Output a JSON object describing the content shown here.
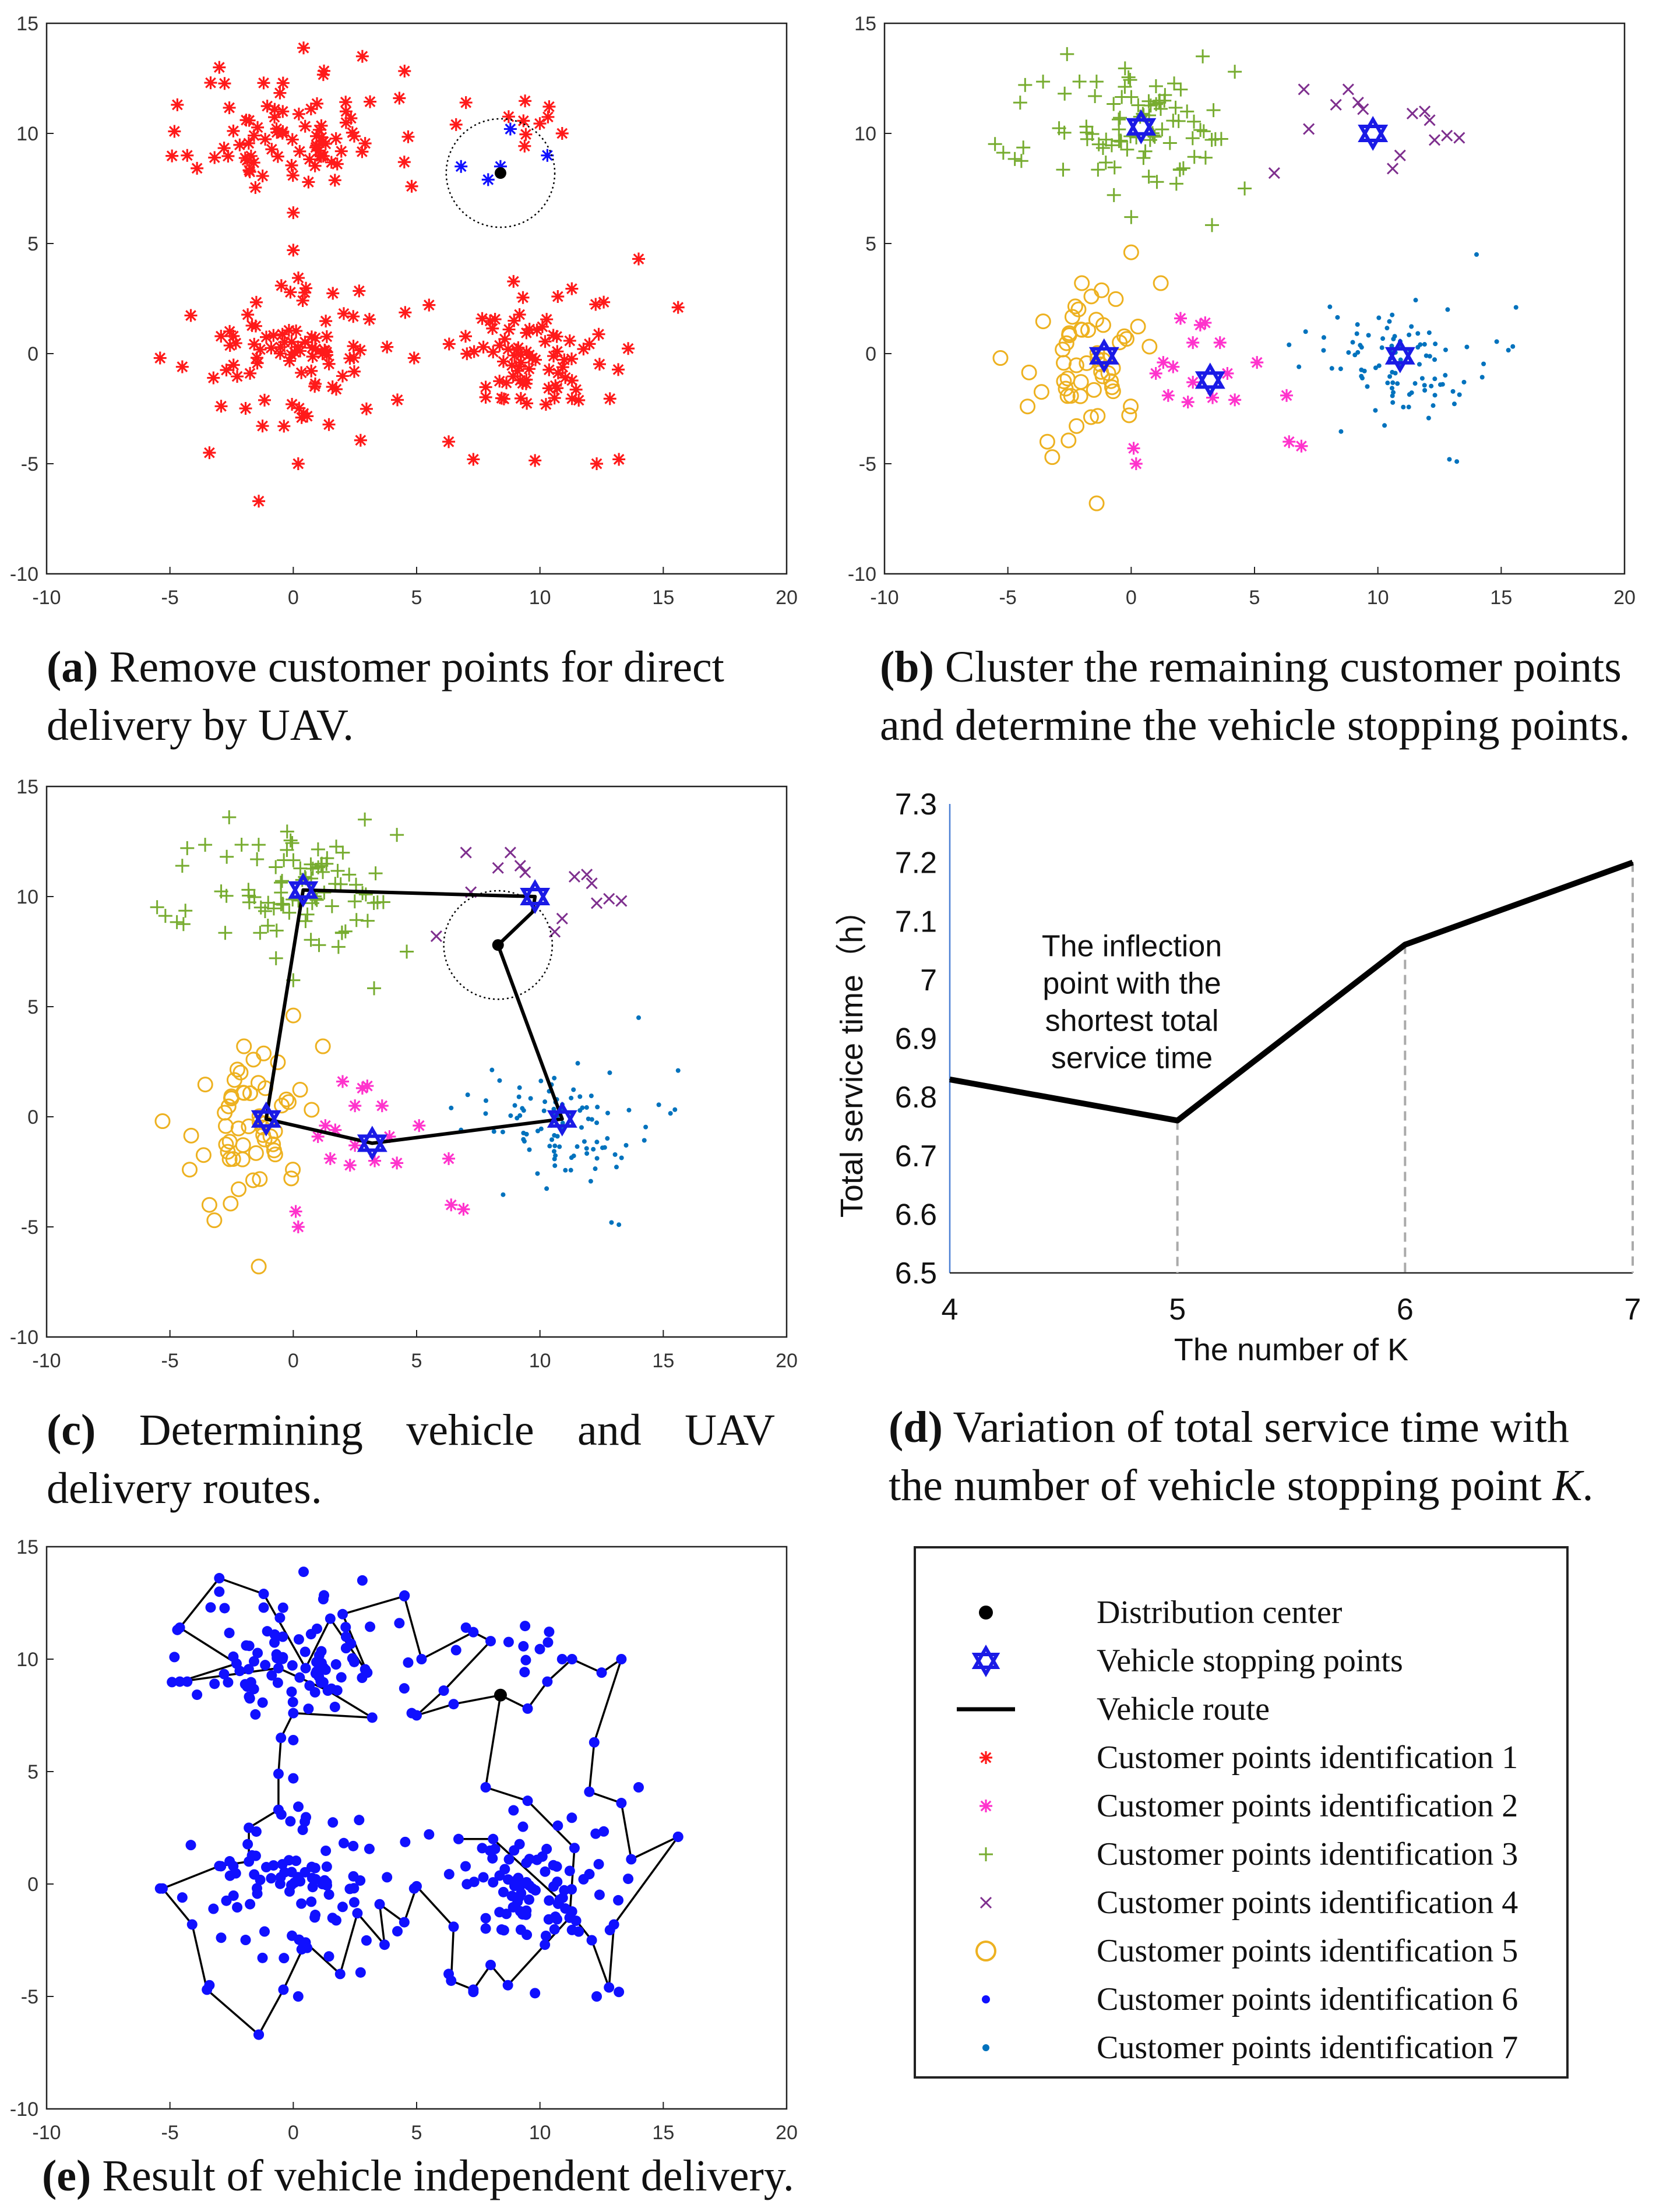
{
  "colors": {
    "red": "#ff1a1a",
    "magenta": "#ff33cc",
    "green": "#77ac30",
    "purple": "#7e2f8e",
    "orange": "#edb120",
    "blue_dot": "#1010ff",
    "cyan": "#0072bd",
    "star": "#1a1ae6",
    "black": "#000000"
  },
  "captions": {
    "a": {
      "label": "(a)",
      "l1": "Remove customer points for direct",
      "l2": "delivery by UAV."
    },
    "b": {
      "label": "(b)",
      "l1": "Cluster the remaining customer points",
      "l2": "and determine the vehicle stopping points."
    },
    "c": {
      "label": "(c)",
      "w1": "Determining",
      "w2": "vehicle",
      "w3": "and",
      "w4": "UAV",
      "l2": "delivery routes."
    },
    "d": {
      "label": "(d)",
      "l1": "Variation of total service time with",
      "l2": "the number of vehicle stopping point ",
      "l2_italic": "K",
      "l2_end": "."
    },
    "e": {
      "label": "(e)",
      "l1": "Result of vehicle independent delivery."
    }
  },
  "legend": {
    "items": [
      {
        "symbol": "dot-black",
        "label": "Distribution center"
      },
      {
        "symbol": "star-hexagram",
        "label": "Vehicle stopping points"
      },
      {
        "symbol": "line-black",
        "label": "Vehicle route"
      },
      {
        "symbol": "asterisk-red",
        "label": "Customer points identification 1"
      },
      {
        "symbol": "asterisk-magenta",
        "label": "Customer points identification 2"
      },
      {
        "symbol": "plus-green",
        "label": "Customer points identification 3"
      },
      {
        "symbol": "cross-purple",
        "label": "Customer points identification 4"
      },
      {
        "symbol": "circle-orange",
        "label": "Customer points identification 5"
      },
      {
        "symbol": "dot-blue",
        "label": "Customer points identification 6"
      },
      {
        "symbol": "dot-cyan",
        "label": "Customer points identification 7"
      }
    ]
  },
  "chart_data": [
    {
      "id": "a",
      "type": "scatter",
      "xlim": [
        -10,
        20
      ],
      "ylim": [
        -10,
        15
      ],
      "xticks": [
        -10,
        -5,
        0,
        5,
        10,
        15,
        20
      ],
      "yticks": [
        -10,
        -5,
        0,
        5,
        10,
        15
      ],
      "distribution_center": [
        8.4,
        8.2
      ],
      "uav_radius": 2.2,
      "series": [
        {
          "name": "Customer points identification 1",
          "marker": "asterisk",
          "color": "#ff1a1a",
          "clusters": [
            {
              "center": [
                0,
                10
              ],
              "n": 80,
              "spread": [
                2.6,
                1.9
              ],
              "seed": 11,
              "extra": [
                [
                  -4.7,
                  11.3
                ],
                [
                  -3.0,
                  13.0
                ],
                [
                  2.8,
                  13.5
                ],
                [
                  4.3,
                  11.6
                ],
                [
                  4.5,
                  8.7
                ],
                [
                  0.0,
                  6.4
                ],
                [
                  -4.3,
                  9.0
                ],
                [
                  4.8,
                  7.6
                ]
              ]
            },
            {
              "center": [
                10.5,
                10
              ],
              "n": 8,
              "spread": [
                1.3,
                1.0
              ],
              "seed": 12,
              "extra": [
                [
                  6.6,
                  10.4
                ],
                [
                  7.0,
                  11.4
                ],
                [
                  10.9,
                  10.0
                ]
              ]
            },
            {
              "center": [
                0,
                0
              ],
              "n": 85,
              "spread": [
                2.4,
                2.2
              ],
              "seed": 13,
              "extra": [
                [
                  -5.4,
                  -0.2
                ],
                [
                  -4.5,
                  -0.6
                ],
                [
                  -3.4,
                  -4.5
                ],
                [
                  -1.4,
                  -6.7
                ],
                [
                  0,
                  4.7
                ],
                [
                  3.8,
                  0.3
                ],
                [
                  4.9,
                  -0.2
                ],
                [
                  0.2,
                  -5.0
                ]
              ]
            },
            {
              "center": [
                10,
                0
              ],
              "n": 85,
              "spread": [
                2.5,
                2.0
              ],
              "seed": 14,
              "extra": [
                [
                  15.6,
                  2.1
                ],
                [
                  13.2,
                  -4.8
                ],
                [
                  6.3,
                  -4.0
                ],
                [
                  7.3,
                  -4.8
                ],
                [
                  14.0,
                  4.3
                ],
                [
                  12.3,
                  -5.0
                ]
              ]
            }
          ]
        },
        {
          "name": "UAV direct customers",
          "marker": "asterisk",
          "color": "#1010ff",
          "points": [
            [
              6.8,
              8.5
            ],
            [
              7.9,
              7.9
            ],
            [
              8.4,
              8.5
            ],
            [
              8.8,
              10.2
            ],
            [
              10.3,
              9.0
            ]
          ]
        }
      ]
    },
    {
      "id": "b",
      "type": "scatter",
      "xlim": [
        -10,
        20
      ],
      "ylim": [
        -10,
        15
      ],
      "xticks": [
        -10,
        -5,
        0,
        5,
        10,
        15,
        20
      ],
      "yticks": [
        -10,
        -5,
        0,
        5,
        10,
        15
      ],
      "stopping_points": [
        [
          0.4,
          10.3
        ],
        [
          9.8,
          10.0
        ],
        [
          -1.1,
          -0.1
        ],
        [
          3.2,
          -1.2
        ],
        [
          10.9,
          -0.1
        ]
      ],
      "series": [
        {
          "name": "Customer points identification 3",
          "marker": "plus",
          "color": "#77ac30",
          "cluster": {
            "center": [
              0.5,
              10
            ],
            "n": 85,
            "spread": [
              2.6,
              1.8
            ],
            "seed": 21,
            "extra": [
              [
                -4.3,
                12.2
              ],
              [
                -4.5,
                11.4
              ],
              [
                -2.6,
                13.6
              ],
              [
                2.9,
                13.5
              ],
              [
                4.2,
                12.8
              ],
              [
                4.6,
                7.5
              ],
              [
                0.0,
                6.2
              ],
              [
                -0.7,
                7.2
              ]
            ]
          }
        },
        {
          "name": "Customer points identification 4",
          "marker": "cross",
          "color": "#7e2f8e",
          "points": [
            [
              5.8,
              8.2
            ],
            [
              7.0,
              12.0
            ],
            [
              7.2,
              10.2
            ],
            [
              8.3,
              11.3
            ],
            [
              8.8,
              12.0
            ],
            [
              9.4,
              11.1
            ],
            [
              10.6,
              8.4
            ],
            [
              10.9,
              9.0
            ],
            [
              11.4,
              10.9
            ],
            [
              12.1,
              10.6
            ],
            [
              12.3,
              9.7
            ],
            [
              12.8,
              9.9
            ],
            [
              13.3,
              9.8
            ],
            [
              11.9,
              11.0
            ],
            [
              9.2,
              11.4
            ]
          ]
        },
        {
          "name": "Customer points identification 5",
          "marker": "circle",
          "color": "#edb120",
          "cluster": {
            "center": [
              -1.5,
              -0.5
            ],
            "n": 52,
            "spread": [
              1.3,
              1.8
            ],
            "seed": 23,
            "extra": [
              [
                -5.3,
                -0.2
              ],
              [
                -4.2,
                -2.4
              ],
              [
                -3.2,
                -4.7
              ],
              [
                -1.4,
                -6.8
              ],
              [
                0.0,
                4.6
              ],
              [
                -2.0,
                3.2
              ],
              [
                1.2,
                3.2
              ],
              [
                -3.4,
                -4.0
              ]
            ]
          }
        },
        {
          "name": "Customer points identification 2",
          "marker": "asterisk",
          "color": "#ff33cc",
          "points": [
            [
              0.1,
              -4.3
            ],
            [
              0.2,
              -5.0
            ],
            [
              1.0,
              -0.9
            ],
            [
              1.3,
              -0.4
            ],
            [
              1.5,
              -1.9
            ],
            [
              2.0,
              1.6
            ],
            [
              2.5,
              0.5
            ],
            [
              2.5,
              -1.3
            ],
            [
              2.8,
              1.3
            ],
            [
              3.0,
              1.4
            ],
            [
              3.3,
              -2.0
            ],
            [
              3.6,
              0.5
            ],
            [
              3.9,
              -0.9
            ],
            [
              4.2,
              -2.1
            ],
            [
              5.1,
              -0.4
            ],
            [
              6.3,
              -1.9
            ],
            [
              6.4,
              -4.0
            ],
            [
              6.9,
              -4.2
            ],
            [
              2.3,
              -2.2
            ],
            [
              1.7,
              -0.6
            ]
          ]
        },
        {
          "name": "Customer points identification 7",
          "marker": "dot",
          "color": "#0072bd",
          "cluster": {
            "center": [
              10.8,
              -0.3
            ],
            "n": 95,
            "spread": [
              2.3,
              1.8
            ],
            "seed": 27,
            "extra": [
              [
                15.6,
                2.1
              ],
              [
                14.0,
                4.5
              ],
              [
                13.2,
                -4.9
              ],
              [
                12.9,
                -4.8
              ],
              [
                6.4,
                0.4
              ],
              [
                6.8,
                -0.6
              ]
            ]
          }
        }
      ]
    },
    {
      "id": "c",
      "type": "scatter",
      "xlim": [
        -10,
        20
      ],
      "ylim": [
        -10,
        15
      ],
      "xticks": [
        -10,
        -5,
        0,
        5,
        10,
        15,
        20
      ],
      "yticks": [
        -10,
        -5,
        0,
        5,
        10,
        15
      ],
      "distribution_center": [
        8.3,
        7.8
      ],
      "uav_radius": 2.2,
      "stopping_points": [
        [
          0.4,
          10.3
        ],
        [
          9.8,
          10.0
        ],
        [
          -1.1,
          -0.1
        ],
        [
          3.2,
          -1.2
        ],
        [
          10.9,
          -0.1
        ]
      ],
      "vehicle_route": [
        [
          8.3,
          7.8
        ],
        [
          9.7,
          9.3
        ],
        [
          9.8,
          10.0
        ],
        [
          0.4,
          10.3
        ],
        [
          -1.1,
          -0.1
        ],
        [
          3.2,
          -1.2
        ],
        [
          10.9,
          -0.1
        ],
        [
          8.3,
          7.8
        ]
      ],
      "series_from": "b"
    },
    {
      "id": "d",
      "type": "line",
      "xlabel": "The number of K",
      "ylabel": "Total service time（h）",
      "xlim": [
        4,
        7
      ],
      "ylim": [
        6.5,
        7.3
      ],
      "x": [
        4,
        5,
        6,
        7
      ],
      "y": [
        6.83,
        6.76,
        7.06,
        7.2
      ],
      "xticks": [
        4,
        5,
        6,
        7
      ],
      "yticks": [
        6.5,
        6.6,
        6.7,
        6.8,
        6.9,
        7,
        7.1,
        7.2,
        7.3
      ],
      "ytick_labels": [
        "6.5",
        "6.6",
        "6.7",
        "6.8",
        "6.9",
        "7",
        "7.1",
        "7.2",
        "7.3"
      ],
      "annotation": [
        "The inflection",
        "point with the",
        "shortest total",
        "service time"
      ]
    },
    {
      "id": "e",
      "type": "line",
      "xlim": [
        -10,
        20
      ],
      "ylim": [
        -10,
        15
      ],
      "xticks": [
        -10,
        -5,
        0,
        5,
        10,
        15,
        20
      ],
      "yticks": [
        -10,
        -5,
        0,
        5,
        10,
        15
      ],
      "distribution_center": [
        8.4,
        8.4
      ],
      "route": [
        [
          8.4,
          8.4
        ],
        [
          6.5,
          8.0
        ],
        [
          5.0,
          7.5
        ],
        [
          6.1,
          8.6
        ],
        [
          8.0,
          10.8
        ],
        [
          7.3,
          11.2
        ],
        [
          5.2,
          10.0
        ],
        [
          4.5,
          12.8
        ],
        [
          2.0,
          12.0
        ],
        [
          3.0,
          9.4
        ],
        [
          1.5,
          11.8
        ],
        [
          0.5,
          9.6
        ],
        [
          -1.2,
          12.9
        ],
        [
          -3.0,
          13.6
        ],
        [
          -4.6,
          11.4
        ],
        [
          -2.3,
          9.8
        ],
        [
          -4.6,
          9.0
        ],
        [
          -0.6,
          9.6
        ],
        [
          1.4,
          8.6
        ],
        [
          3.2,
          7.4
        ],
        [
          0.0,
          7.6
        ],
        [
          -0.5,
          6.5
        ],
        [
          -0.6,
          4.9
        ],
        [
          -0.6,
          3.3
        ],
        [
          -1.8,
          2.5
        ],
        [
          -1.8,
          1.0
        ],
        [
          -3.0,
          0.8
        ],
        [
          -5.3,
          -0.2
        ],
        [
          -4.1,
          -1.8
        ],
        [
          -3.5,
          -4.7
        ],
        [
          -1.4,
          -6.7
        ],
        [
          -0.4,
          -4.7
        ],
        [
          0.5,
          -2.6
        ],
        [
          1.9,
          -4.0
        ],
        [
          2.6,
          -1.3
        ],
        [
          3.7,
          -2.7
        ],
        [
          3.5,
          -0.9
        ],
        [
          4.5,
          -1.7
        ],
        [
          5.0,
          -0.1
        ],
        [
          6.5,
          -1.9
        ],
        [
          6.4,
          -4.3
        ],
        [
          7.3,
          -4.7
        ],
        [
          8.0,
          -3.6
        ],
        [
          8.7,
          -4.5
        ],
        [
          10.2,
          -2.7
        ],
        [
          11.2,
          -1.5
        ],
        [
          11.4,
          1.6
        ],
        [
          9.5,
          3.7
        ],
        [
          7.8,
          4.3
        ],
        [
          8.4,
          8.4
        ],
        [
          9.5,
          7.8
        ],
        [
          10.3,
          9.0
        ],
        [
          11.3,
          10.0
        ],
        [
          12.5,
          9.4
        ],
        [
          13.3,
          10.0
        ],
        [
          12.2,
          6.3
        ],
        [
          12.0,
          4.1
        ],
        [
          13.3,
          3.6
        ],
        [
          13.7,
          1.1
        ],
        [
          15.6,
          2.1
        ],
        [
          13.0,
          -1.8
        ],
        [
          12.8,
          -4.6
        ],
        [
          12.1,
          -2.5
        ],
        [
          10.8,
          -0.7
        ],
        [
          8.1,
          2.0
        ],
        [
          6.7,
          2.0
        ]
      ],
      "series": [
        {
          "name": "Customer points identification 6",
          "marker": "dot",
          "color": "#1010ff",
          "from": "a"
        }
      ]
    }
  ]
}
